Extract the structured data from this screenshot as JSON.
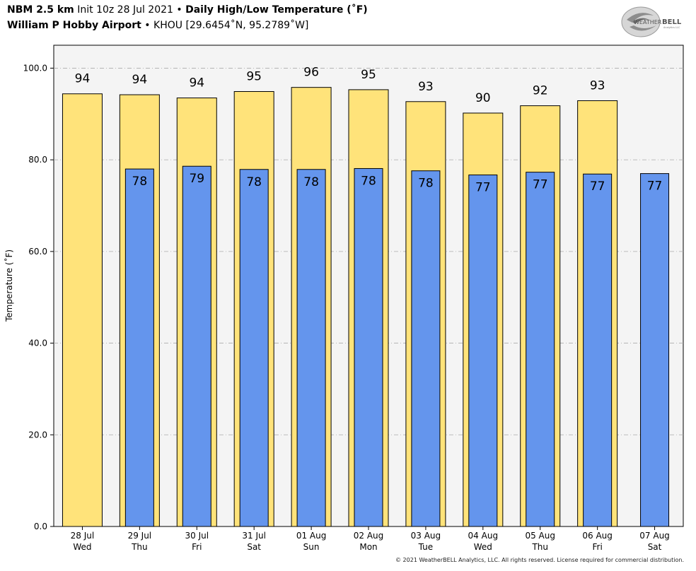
{
  "header": {
    "model": "NBM 2.5 km",
    "init": "Init 10z 28 Jul 2021",
    "sep1": "•",
    "product": "Daily High/Low Temperature (˚F)",
    "station": "William P Hobby Airport",
    "sep2": "•",
    "station_info": "KHOU [29.6454˚N, 95.2789˚W]"
  },
  "logo": {
    "text_left": "WEATHER",
    "text_right": "BELL",
    "sub": "Analytics LLC"
  },
  "footer": "© 2021 WeatherBELL Analytics, LLC. All rights reserved. License required for commercial distribution.",
  "colors": {
    "high": "#FFE37A",
    "low": "#6495ED",
    "plot_bg": "#F4F4F4",
    "grid": "#AAAAAA"
  },
  "chart_data": {
    "type": "bar",
    "ylabel": "Temperature (˚F)",
    "ylim": [
      0,
      105
    ],
    "yticks": [
      "0.0",
      "20.0",
      "40.0",
      "60.0",
      "80.0",
      "100.0"
    ],
    "grid": true,
    "categories": [
      {
        "date": "28 Jul",
        "day": "Wed"
      },
      {
        "date": "29 Jul",
        "day": "Thu"
      },
      {
        "date": "30 Jul",
        "day": "Fri"
      },
      {
        "date": "31 Jul",
        "day": "Sat"
      },
      {
        "date": "01 Aug",
        "day": "Sun"
      },
      {
        "date": "02 Aug",
        "day": "Mon"
      },
      {
        "date": "03 Aug",
        "day": "Tue"
      },
      {
        "date": "04 Aug",
        "day": "Wed"
      },
      {
        "date": "05 Aug",
        "day": "Thu"
      },
      {
        "date": "06 Aug",
        "day": "Fri"
      },
      {
        "date": "07 Aug",
        "day": "Sat"
      }
    ],
    "series": [
      {
        "name": "High",
        "values": [
          94.4,
          94.2,
          93.5,
          94.9,
          95.8,
          95.3,
          92.7,
          90.2,
          91.8,
          92.9,
          null
        ],
        "labels": [
          "94",
          "94",
          "94",
          "95",
          "96",
          "95",
          "93",
          "90",
          "92",
          "93",
          null
        ]
      },
      {
        "name": "Low",
        "values": [
          null,
          78.0,
          78.6,
          77.9,
          77.9,
          78.1,
          77.6,
          76.7,
          77.3,
          76.9,
          77.0
        ],
        "labels": [
          null,
          "78",
          "79",
          "78",
          "78",
          "78",
          "78",
          "77",
          "77",
          "77",
          "77"
        ]
      }
    ]
  }
}
